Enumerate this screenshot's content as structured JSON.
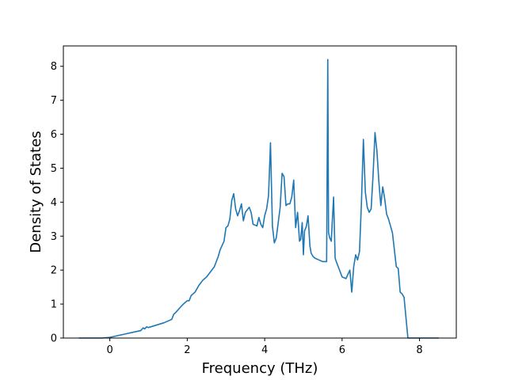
{
  "chart_data": {
    "type": "line",
    "title": "",
    "xlabel": "Frequency (THz)",
    "ylabel": "Density of States",
    "xlim": [
      -1.2,
      8.95
    ],
    "ylim": [
      0,
      8.6
    ],
    "xticks": [
      0,
      2,
      4,
      6,
      8
    ],
    "xtick_labels": [
      "0",
      "2",
      "4",
      "6",
      "8"
    ],
    "yticks": [
      0,
      1,
      2,
      3,
      4,
      5,
      6,
      7,
      8
    ],
    "ytick_labels": [
      "0",
      "1",
      "2",
      "3",
      "4",
      "5",
      "6",
      "7",
      "8"
    ],
    "grid": false,
    "line_color": "#1f77b4",
    "series": [
      {
        "x": [
          -0.8,
          -0.6,
          -0.4,
          -0.2,
          0.0,
          0.2,
          0.4,
          0.6,
          0.8,
          0.86,
          0.9,
          0.95,
          1.0,
          1.2,
          1.4,
          1.5,
          1.6,
          1.65,
          1.7,
          1.8,
          1.9,
          2.0,
          2.05,
          2.1,
          2.2,
          2.3,
          2.4,
          2.5,
          2.6,
          2.7,
          2.8,
          2.85,
          2.95,
          3.0,
          3.05,
          3.1,
          3.15,
          3.2,
          3.25,
          3.3,
          3.35,
          3.4,
          3.45,
          3.5,
          3.6,
          3.65,
          3.7,
          3.8,
          3.85,
          3.9,
          3.95,
          4.0,
          4.05,
          4.1,
          4.15,
          4.2,
          4.25,
          4.3,
          4.35,
          4.4,
          4.45,
          4.5,
          4.55,
          4.6,
          4.65,
          4.7,
          4.75,
          4.8,
          4.85,
          4.9,
          4.93,
          4.97,
          5.0,
          5.03,
          5.08,
          5.12,
          5.17,
          5.2,
          5.25,
          5.3,
          5.4,
          5.5,
          5.6,
          5.63,
          5.65,
          5.68,
          5.72,
          5.78,
          5.82,
          5.85,
          5.9,
          6.0,
          6.1,
          6.2,
          6.25,
          6.3,
          6.35,
          6.4,
          6.45,
          6.5,
          6.55,
          6.6,
          6.65,
          6.7,
          6.75,
          6.8,
          6.85,
          6.9,
          6.95,
          7.0,
          7.05,
          7.1,
          7.15,
          7.2,
          7.25,
          7.3,
          7.35,
          7.4,
          7.45,
          7.5,
          7.55,
          7.6,
          7.7,
          7.75,
          7.8,
          8.0,
          8.2,
          8.5
        ],
        "y": [
          0.0,
          0.0,
          0.0,
          0.0,
          0.02,
          0.07,
          0.12,
          0.17,
          0.22,
          0.3,
          0.27,
          0.33,
          0.31,
          0.38,
          0.45,
          0.5,
          0.55,
          0.7,
          0.75,
          0.88,
          1.0,
          1.1,
          1.1,
          1.25,
          1.35,
          1.55,
          1.7,
          1.8,
          1.95,
          2.1,
          2.4,
          2.6,
          2.85,
          3.25,
          3.3,
          3.5,
          4.05,
          4.25,
          3.8,
          3.6,
          3.75,
          3.95,
          3.45,
          3.7,
          3.85,
          3.7,
          3.35,
          3.3,
          3.55,
          3.35,
          3.25,
          3.6,
          3.8,
          4.2,
          5.75,
          3.3,
          2.8,
          2.95,
          3.4,
          3.85,
          4.85,
          4.75,
          3.9,
          3.95,
          3.95,
          4.15,
          4.65,
          3.25,
          3.7,
          2.85,
          2.9,
          3.4,
          2.45,
          3.15,
          3.3,
          3.6,
          2.7,
          2.5,
          2.4,
          2.35,
          2.3,
          2.25,
          2.25,
          8.2,
          3.1,
          2.95,
          2.85,
          4.15,
          2.35,
          2.25,
          2.1,
          1.8,
          1.75,
          2.0,
          1.35,
          2.1,
          2.45,
          2.3,
          2.55,
          4.0,
          5.85,
          4.3,
          3.85,
          3.7,
          3.8,
          4.8,
          6.05,
          5.5,
          4.6,
          3.9,
          4.45,
          4.1,
          3.65,
          3.5,
          3.3,
          3.1,
          2.6,
          2.1,
          2.05,
          1.35,
          1.3,
          1.2,
          0.0,
          0.0,
          0.0,
          0.0,
          0.0,
          0.0
        ]
      }
    ]
  }
}
